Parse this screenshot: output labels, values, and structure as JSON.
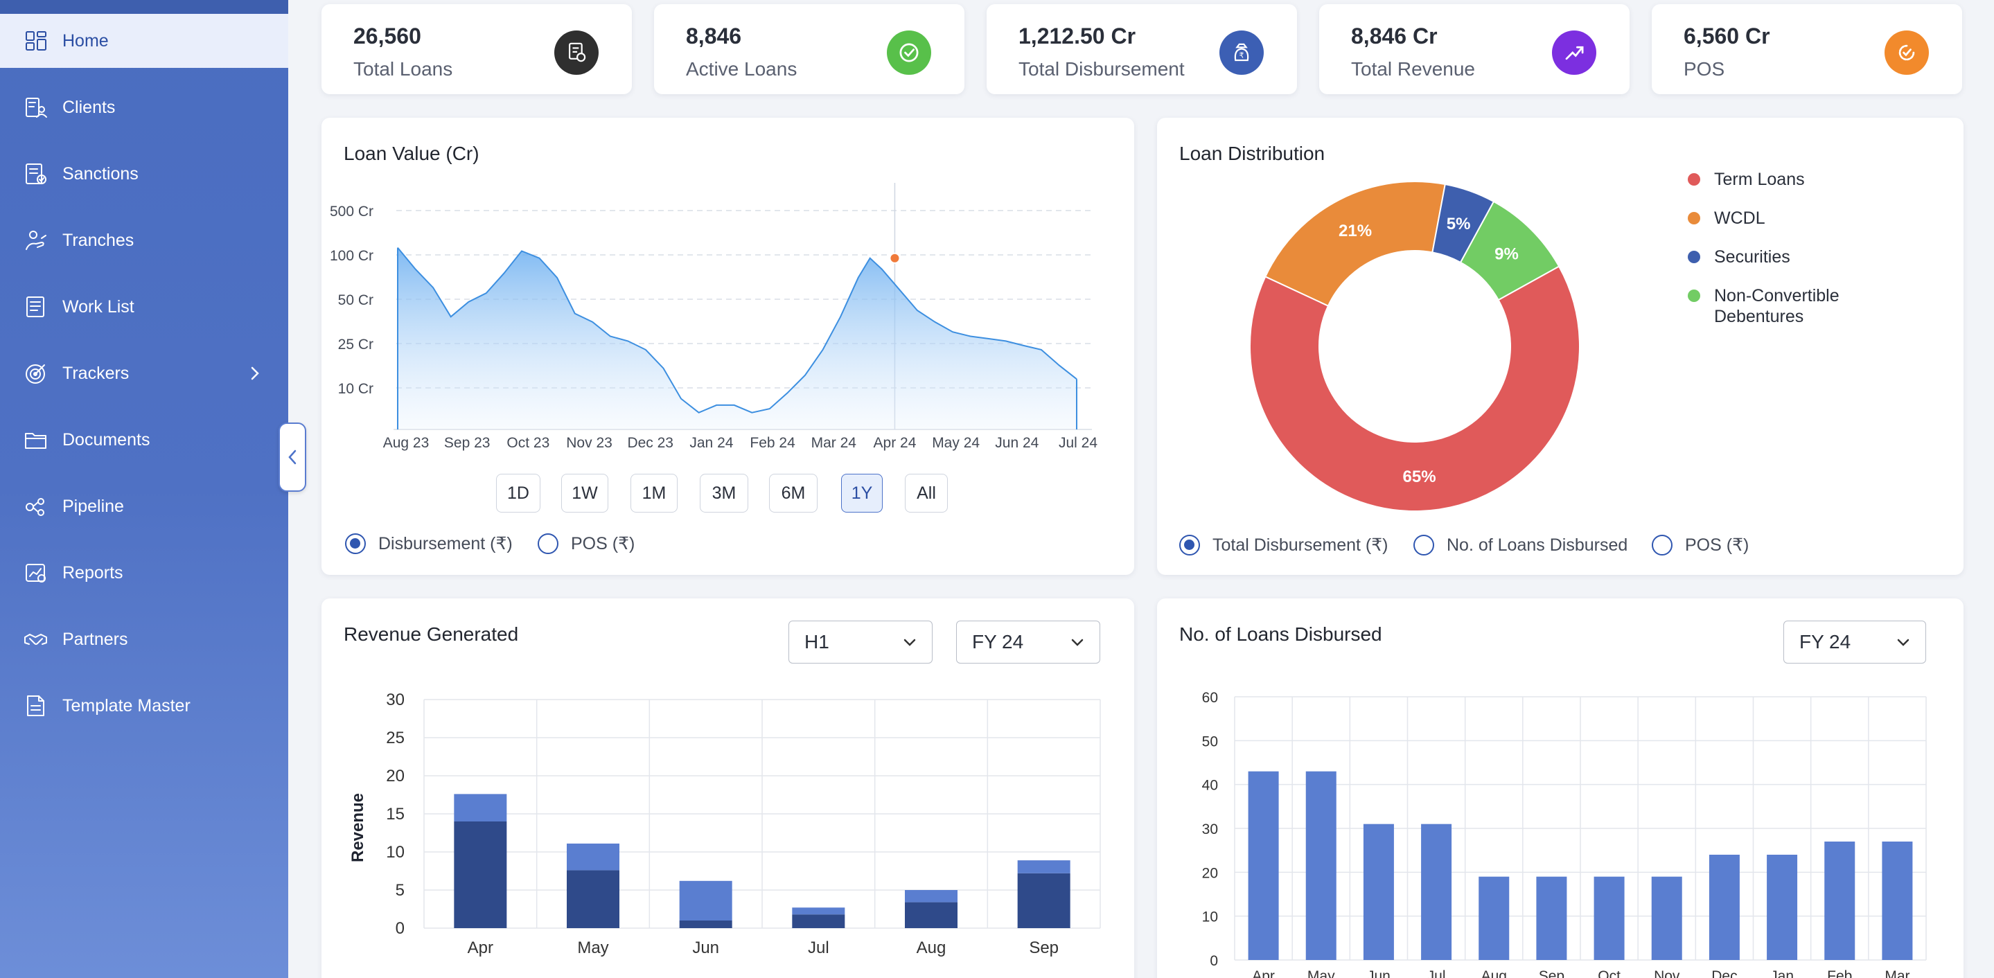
{
  "sidebar": {
    "items": [
      {
        "label": "Home",
        "icon": "dashboard-icon",
        "active": true
      },
      {
        "label": "Clients",
        "icon": "clients-icon"
      },
      {
        "label": "Sanctions",
        "icon": "sanctions-icon"
      },
      {
        "label": "Tranches",
        "icon": "tranches-icon"
      },
      {
        "label": "Work List",
        "icon": "work-list-icon"
      },
      {
        "label": "Trackers",
        "icon": "trackers-icon",
        "has_submenu": true
      },
      {
        "label": "Documents",
        "icon": "folder-icon"
      },
      {
        "label": "Pipeline",
        "icon": "pipeline-icon"
      },
      {
        "label": "Reports",
        "icon": "reports-icon"
      },
      {
        "label": "Partners",
        "icon": "handshake-icon"
      },
      {
        "label": "Template Master",
        "icon": "template-icon"
      }
    ]
  },
  "stats": [
    {
      "value": "26,560",
      "label": "Total Loans",
      "icon": "loan-document-icon",
      "color": "#2f2f2f"
    },
    {
      "value": "8,846",
      "label": "Active Loans",
      "icon": "check-circle-icon",
      "color": "#58c04a"
    },
    {
      "value": "1,212.50 Cr",
      "label": "Total Disbursement",
      "icon": "money-bag-icon",
      "color": "#3c5fb4"
    },
    {
      "value": "8,846 Cr",
      "label": "Total Revenue",
      "icon": "trend-up-icon",
      "color": "#7c2fe0"
    },
    {
      "value": "6,560 Cr",
      "label": "POS",
      "icon": "clock-check-icon",
      "color": "#f28a2c"
    }
  ],
  "loan_value": {
    "title": "Loan Value (Cr)",
    "ranges": [
      "1D",
      "1W",
      "1M",
      "3M",
      "6M",
      "1Y",
      "All"
    ],
    "active_range": "1Y",
    "options": [
      "Disbursement (₹)",
      "POS (₹)"
    ],
    "selected_option": "Disbursement (₹)"
  },
  "loan_distribution": {
    "title": "Loan Distribution",
    "options": [
      "Total Disbursement (₹)",
      "No. of Loans Disbursed",
      "POS (₹)"
    ],
    "selected_option": "Total Disbursement (₹)"
  },
  "revenue": {
    "title": "Revenue Generated",
    "period_select": "H1",
    "fy_select": "FY 24"
  },
  "loans_disbursed": {
    "title": "No. of Loans Disbursed",
    "fy_select": "FY 24"
  },
  "chart_data": [
    {
      "type": "area",
      "title": "Loan Value (Cr)",
      "y_tick_labels": [
        "500 Cr",
        "100 Cr",
        "50 Cr",
        "25 Cr",
        "10 Cr"
      ],
      "x_tick_labels": [
        "Aug 23",
        "Sep 23",
        "Oct 23",
        "Nov 23",
        "Dec 23",
        "Jan 24",
        "Feb 24",
        "Mar 24",
        "Apr 24",
        "May 24",
        "Jun 24",
        "Jul 24"
      ],
      "x": [
        0,
        0.3,
        0.6,
        0.9,
        1.2,
        1.5,
        1.8,
        2.1,
        2.4,
        2.7,
        3.0,
        3.3,
        3.6,
        3.9,
        4.2,
        4.5,
        4.8,
        5.1,
        5.4,
        5.7,
        6.0,
        6.3,
        6.6,
        6.9,
        7.2,
        7.5,
        7.8,
        8.0,
        8.2,
        8.5,
        8.8,
        9.1,
        9.4,
        9.7,
        10.0,
        10.3,
        10.6,
        10.9,
        11.2,
        11.5
      ],
      "series": [
        {
          "values": [
            130,
            80,
            60,
            38,
            48,
            55,
            75,
            115,
            95,
            70,
            40,
            35,
            28,
            26,
            22,
            15,
            8,
            6,
            7,
            7,
            6,
            6.5,
            9,
            13,
            22,
            38,
            70,
            95,
            80,
            58,
            42,
            35,
            30,
            28,
            27,
            26,
            24,
            22,
            16,
            12
          ]
        }
      ],
      "highlight": {
        "x_label": "Apr 24",
        "value": 95
      },
      "grid": true
    },
    {
      "type": "pie",
      "title": "Loan Distribution",
      "labels": [
        "Term Loans",
        "WCDL",
        "Securities",
        "Non-Convertible Debentures"
      ],
      "values": [
        65,
        21,
        5,
        9
      ],
      "value_labels": [
        "65%",
        "21%",
        "5%",
        "9%"
      ],
      "colors": [
        "#e05a5a",
        "#e98b3a",
        "#3e5fae",
        "#72cc64"
      ],
      "donut": true,
      "legend": "right"
    },
    {
      "type": "bar",
      "title": "Revenue Generated",
      "ylabel": "Revenue",
      "categories": [
        "Apr",
        "May",
        "Jun",
        "Jul",
        "Aug",
        "Sep"
      ],
      "series": [
        {
          "values": [
            14,
            7.6,
            1,
            1.8,
            3.4,
            7.2
          ],
          "color": "#2f4a8a"
        },
        {
          "values": [
            3.6,
            3.5,
            5.2,
            0.9,
            1.6,
            1.7
          ],
          "color": "#5a7ed0"
        }
      ],
      "stacked": true,
      "ylim": [
        0,
        30
      ],
      "yticks": [
        0,
        5,
        10,
        15,
        20,
        25,
        30
      ],
      "grid": true
    },
    {
      "type": "bar",
      "title": "No. of Loans Disbursed",
      "categories": [
        "Apr",
        "May",
        "Jun",
        "Jul",
        "Aug",
        "Sep",
        "Oct",
        "Nov",
        "Dec",
        "Jan",
        "Feb",
        "Mar"
      ],
      "values": [
        43,
        43,
        31,
        31,
        19,
        19,
        19,
        19,
        24,
        24,
        27,
        27
      ],
      "color": "#5a7ed0",
      "ylim": [
        0,
        60
      ],
      "yticks": [
        0,
        10,
        20,
        30,
        40,
        50,
        60
      ],
      "grid": true
    }
  ]
}
